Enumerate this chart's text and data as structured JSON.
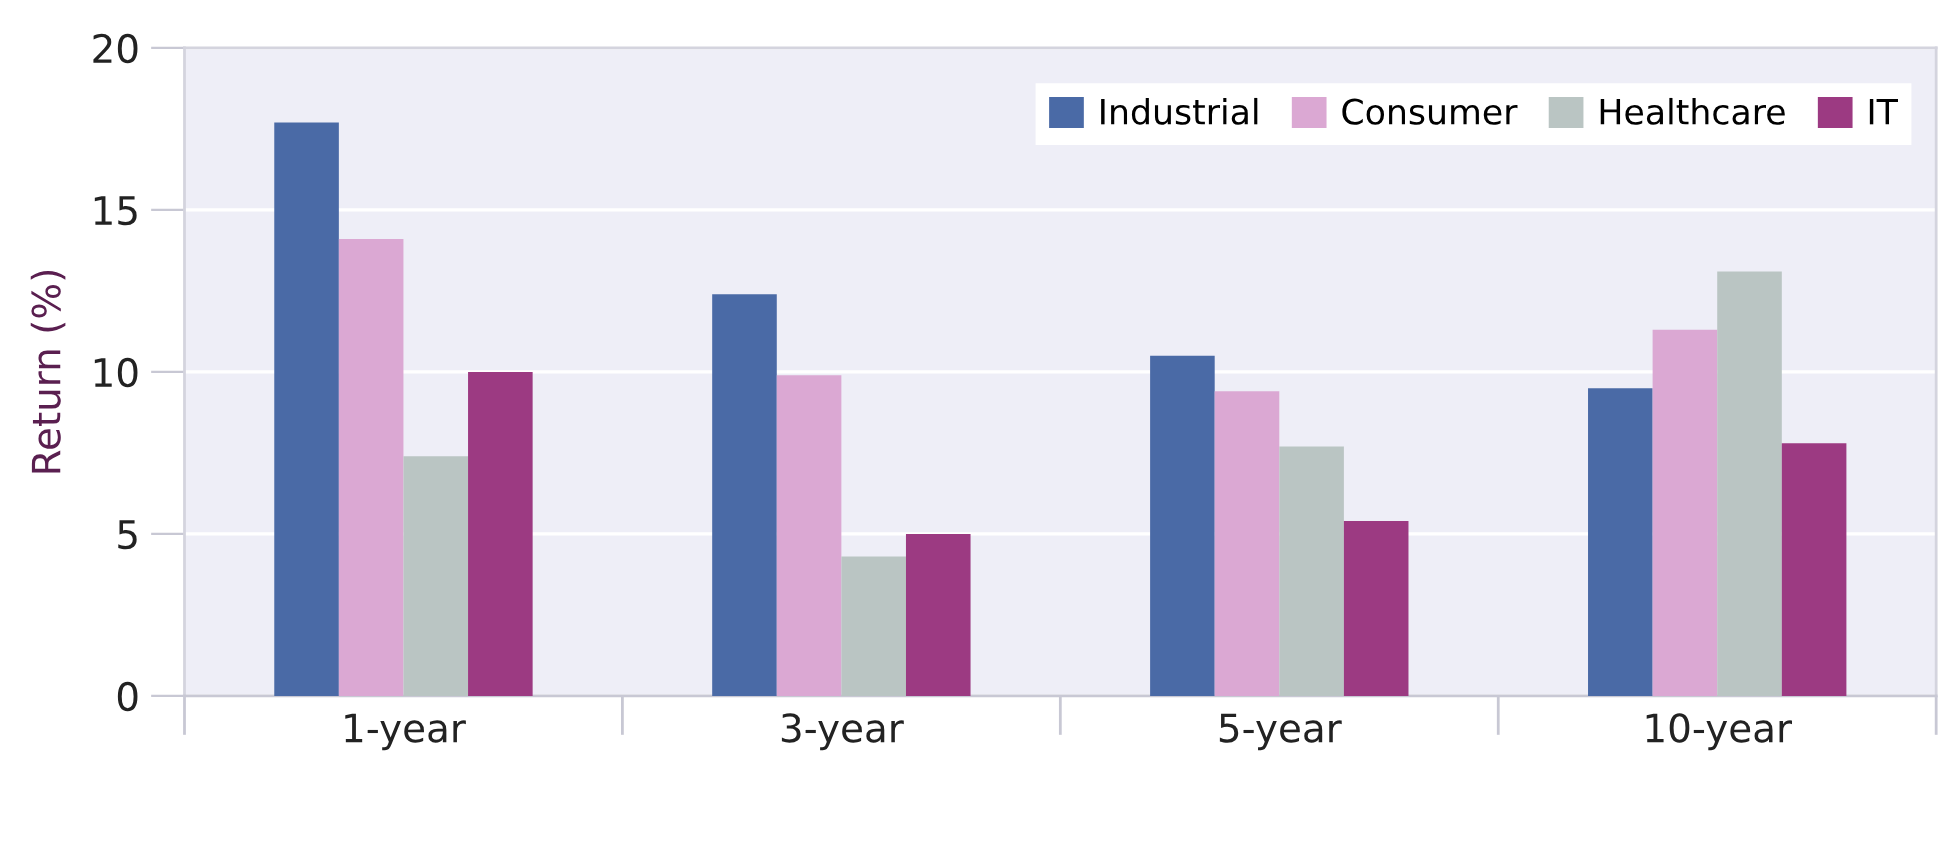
{
  "chart_data": {
    "type": "bar",
    "ylabel": "Return (%)",
    "categories": [
      "1-year",
      "3-year",
      "5-year",
      "10-year"
    ],
    "series": [
      {
        "name": "Industrial",
        "color": "#4a6aa6",
        "values": [
          17.7,
          12.4,
          10.5,
          9.5
        ]
      },
      {
        "name": "Consumer",
        "color": "#dba8d3",
        "values": [
          14.1,
          9.9,
          9.4,
          11.3
        ]
      },
      {
        "name": "Healthcare",
        "color": "#bac5c3",
        "values": [
          7.4,
          4.3,
          7.7,
          13.1
        ]
      },
      {
        "name": "IT",
        "color": "#9c3a82",
        "values": [
          10.0,
          5.0,
          5.4,
          7.8
        ]
      }
    ],
    "ylim": [
      0,
      20
    ],
    "yticks": [
      0,
      5,
      10,
      15,
      20
    ],
    "grid": "y",
    "legend": "top right"
  }
}
